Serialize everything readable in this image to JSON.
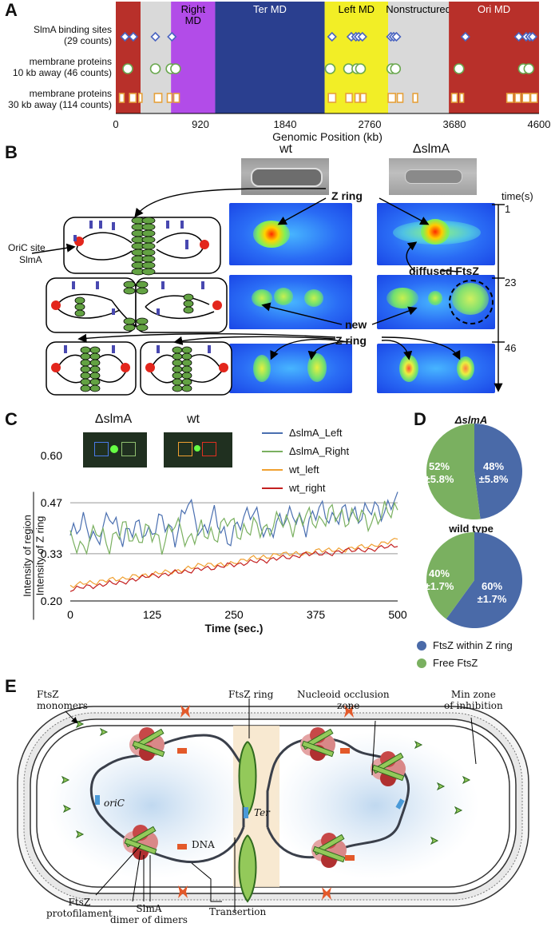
{
  "panel_labels": {
    "a": "A",
    "b": "B",
    "c": "C",
    "d": "D",
    "e": "E"
  },
  "panel_a": {
    "rows": [
      {
        "label_line1": "SlmA binding sites",
        "label_line2": "(29 counts)"
      },
      {
        "label_line1": "membrane proteins",
        "label_line2": "10 kb away (46 counts)"
      },
      {
        "label_line1": "membrane proteins",
        "label_line2": "30 kb away (114 counts)"
      }
    ],
    "regions": [
      {
        "name": "",
        "color": "#b8302a",
        "start": 0,
        "end": 270
      },
      {
        "name": "",
        "color": "#d9d9d9",
        "start": 270,
        "end": 600
      },
      {
        "name": "Right\nMD",
        "color": "#b24ce8",
        "start": 600,
        "end": 1080
      },
      {
        "name": "Ter MD",
        "color": "#2a3f8f",
        "start": 1080,
        "end": 2270
      },
      {
        "name": "Left MD",
        "color": "#f2ee26",
        "start": 2270,
        "end": 2960
      },
      {
        "name": "Nonstructured",
        "color": "#d9d9d9",
        "start": 2960,
        "end": 3620
      },
      {
        "name": "Ori MD",
        "color": "#b8302a",
        "start": 3620,
        "end": 4600
      }
    ],
    "ticks": [
      "0",
      "920",
      "1840",
      "2760",
      "3680",
      "4600"
    ],
    "xlabel": "Genomic Position (kb)",
    "slma_sites_kb": [
      100,
      190,
      430,
      610,
      2350,
      2560,
      2610,
      2640,
      2680,
      2990,
      3020,
      3050,
      3800,
      4380,
      4460,
      4500,
      4530
    ],
    "mem10_kb": [
      130,
      430,
      600,
      650,
      2330,
      2530,
      2620,
      2660,
      3000,
      3040,
      3730,
      4430,
      4490
    ],
    "mem30_kb": [
      [
        40,
        90
      ],
      [
        150,
        220
      ],
      [
        250,
        280
      ],
      [
        420,
        500
      ],
      [
        560,
        610
      ],
      [
        630,
        690
      ],
      [
        2310,
        2390
      ],
      [
        2500,
        2570
      ],
      [
        2600,
        2650
      ],
      [
        2660,
        2720
      ],
      [
        2960,
        3040
      ],
      [
        3060,
        3120
      ],
      [
        3230,
        3280
      ],
      [
        3650,
        3710
      ],
      [
        3740,
        3780
      ],
      [
        4250,
        4320
      ],
      [
        4340,
        4400
      ],
      [
        4420,
        4500
      ],
      [
        4510,
        4580
      ]
    ]
  },
  "panel_b": {
    "col_wt": "wt",
    "col_mut": "ΔslmA",
    "time_label": "time(s)",
    "times": [
      "1",
      "23",
      "46"
    ],
    "oric_label": "OriC site",
    "slma_label": "SlmA",
    "zring_label": "Z ring",
    "diffused_label": "diffused FtsZ",
    "new_line1": "new",
    "new_line2": "Z ring"
  },
  "panel_c": {
    "inset_mut": "ΔslmA",
    "inset_wt": "wt",
    "ylabel_top": "Intensity of region",
    "ylabel_bottom": "Intensity of Z ring",
    "xlabel": "Time (sec.)",
    "legend": [
      {
        "name": "ΔslmA_Left",
        "color": "#4a6fb0"
      },
      {
        "name": "ΔslmA_Right",
        "color": "#7ab060"
      },
      {
        "name": "wt_left",
        "color": "#f0a030"
      },
      {
        "name": "wt_right",
        "color": "#c42020"
      }
    ],
    "y_ticks": [
      "0.60",
      "0.47",
      "0.33",
      "0.20"
    ],
    "x_ticks": [
      "0",
      "125",
      "250",
      "375",
      "500"
    ]
  },
  "panel_d": {
    "title_mut": "ΔslmA",
    "title_wt": "wild type",
    "mut_blue_pct": "48%",
    "mut_blue_err": "±5.8%",
    "mut_green_pct": "52%",
    "mut_green_err": "±5.8%",
    "wt_blue_pct": "60%",
    "wt_blue_err": "±1.7%",
    "wt_green_pct": "40%",
    "wt_green_err": "±1.7%",
    "legend_blue": "FtsZ within Z ring",
    "legend_green": "Free FtsZ",
    "blue": "#4a6aa8",
    "green": "#7ab060"
  },
  "panel_e": {
    "monomers_line1": "FtsZ",
    "monomers_line2": "monomers",
    "ring": "FtsZ ring",
    "occlusion_line1": "Nucleoid occlusion",
    "occlusion_line2": "zone",
    "min_line1": "Min zone",
    "min_line2": "of inhibition",
    "oric": "oriC",
    "ter": "Ter",
    "dna": "DNA",
    "proto_line1": "FtsZ",
    "proto_line2": "protofilament",
    "slma_line1": "SlmA",
    "slma_line2": "dimer of dimers",
    "transertion": "Transertion"
  },
  "chart_data": [
    {
      "type": "line",
      "title": "",
      "xlabel": "Time (sec.)",
      "ylabel": "Intensity of region / Intensity of Z ring",
      "xlim": [
        0,
        500
      ],
      "ylim": [
        0.2,
        0.6
      ],
      "x": [
        0,
        20,
        40,
        60,
        80,
        100,
        120,
        140,
        160,
        180,
        200,
        220,
        240,
        260,
        280,
        300,
        320,
        340,
        360,
        380,
        400,
        420,
        440,
        460,
        480,
        500
      ],
      "series": [
        {
          "name": "ΔslmA_Left",
          "values": [
            0.38,
            0.42,
            0.36,
            0.44,
            0.37,
            0.41,
            0.38,
            0.43,
            0.37,
            0.48,
            0.38,
            0.44,
            0.36,
            0.42,
            0.45,
            0.38,
            0.42,
            0.44,
            0.4,
            0.46,
            0.42,
            0.45,
            0.43,
            0.46,
            0.44,
            0.5
          ]
        },
        {
          "name": "ΔslmA_Right",
          "values": [
            0.37,
            0.34,
            0.4,
            0.35,
            0.41,
            0.36,
            0.4,
            0.35,
            0.42,
            0.36,
            0.4,
            0.37,
            0.43,
            0.38,
            0.41,
            0.39,
            0.43,
            0.4,
            0.44,
            0.41,
            0.45,
            0.42,
            0.44,
            0.41,
            0.45,
            0.45
          ]
        },
        {
          "name": "wt_left",
          "values": [
            0.24,
            0.25,
            0.25,
            0.26,
            0.26,
            0.27,
            0.27,
            0.28,
            0.28,
            0.29,
            0.3,
            0.3,
            0.3,
            0.31,
            0.32,
            0.32,
            0.33,
            0.33,
            0.33,
            0.34,
            0.34,
            0.34,
            0.35,
            0.35,
            0.36,
            0.37
          ]
        },
        {
          "name": "wt_right",
          "values": [
            0.23,
            0.24,
            0.24,
            0.25,
            0.25,
            0.26,
            0.27,
            0.27,
            0.28,
            0.28,
            0.29,
            0.29,
            0.3,
            0.3,
            0.31,
            0.31,
            0.32,
            0.32,
            0.33,
            0.33,
            0.33,
            0.34,
            0.34,
            0.34,
            0.35,
            0.35
          ]
        }
      ]
    },
    {
      "type": "pie",
      "title": "ΔslmA",
      "labels": [
        "FtsZ within Z ring",
        "Free FtsZ"
      ],
      "values": [
        48,
        52
      ]
    },
    {
      "type": "pie",
      "title": "wild type",
      "labels": [
        "FtsZ within Z ring",
        "Free FtsZ"
      ],
      "values": [
        60,
        40
      ]
    }
  ]
}
